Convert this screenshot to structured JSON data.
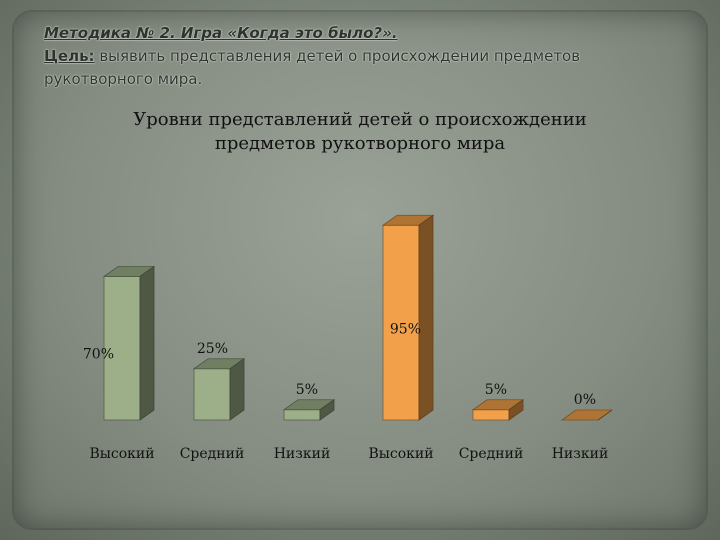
{
  "slide": {
    "heading_line1": "Методика № 2. Игра «Когда это было?».",
    "goal_label": "Цель:",
    "goal_text": " выявить представления детей о происхождении предметов рукотворного мира."
  },
  "chart_data": {
    "type": "bar",
    "title": "Уровни представлений детей о происхождении предметов рукотворного мира",
    "categories": [
      "Высокий",
      "Средний",
      "Низкий",
      "Высокий",
      "Средний",
      "Низкий"
    ],
    "series": [
      {
        "values": [
          70,
          25,
          5,
          null,
          null,
          null
        ],
        "color": "#9caf88"
      },
      {
        "values": [
          null,
          null,
          null,
          95,
          5,
          0
        ],
        "color": "#f2a14a"
      }
    ],
    "data_labels": [
      "70%",
      "25%",
      "5%",
      "95%",
      "5%",
      "0%"
    ],
    "ylim": [
      0,
      100
    ],
    "grid": false,
    "legend": "none"
  }
}
